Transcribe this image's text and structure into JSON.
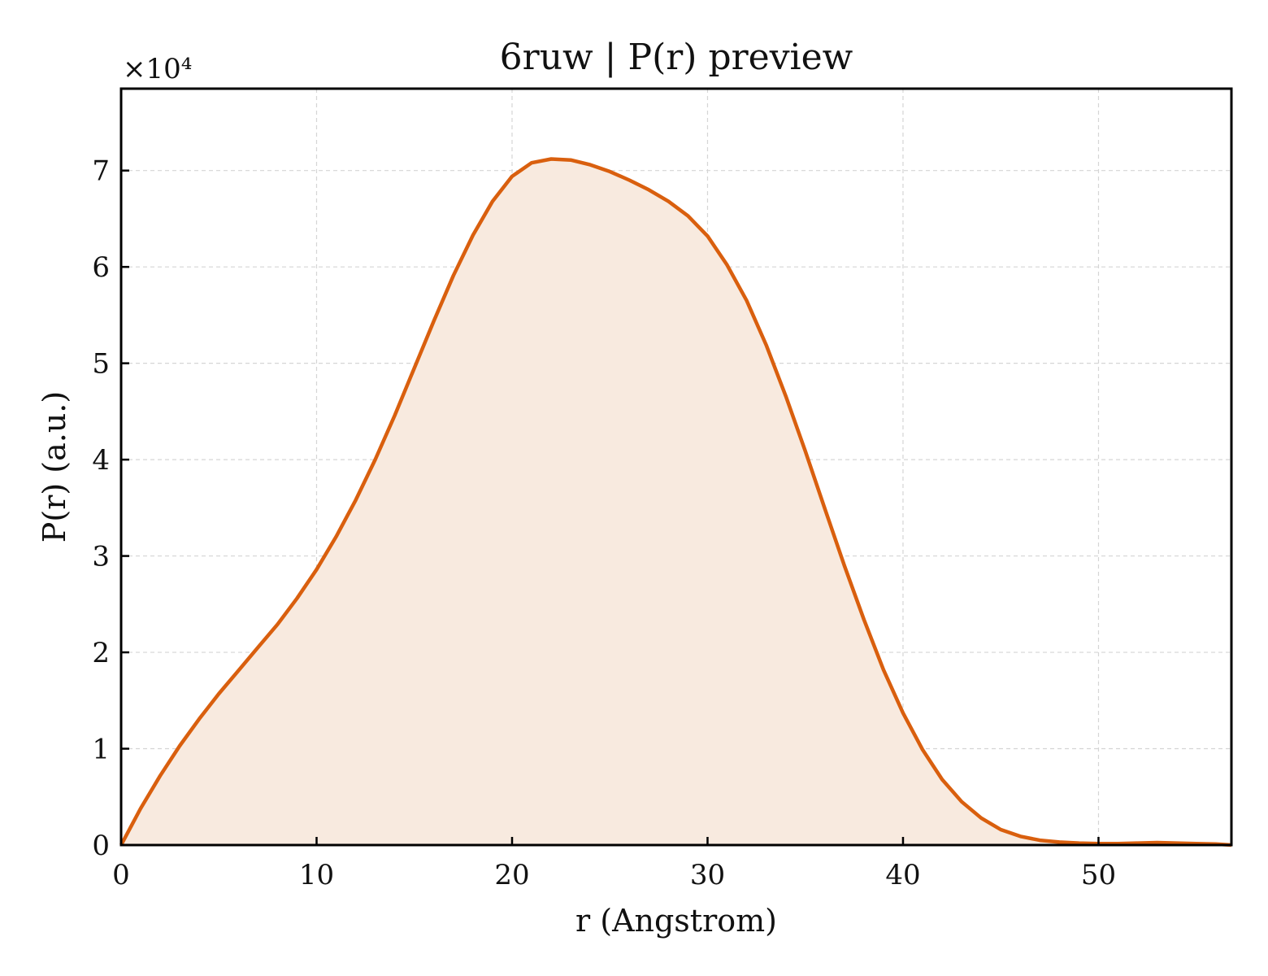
{
  "chart_data": {
    "type": "area",
    "title": "6ruw | P(r) preview",
    "xlabel": "r (Angstrom)",
    "ylabel": "P(r) (a.u.)",
    "y_multiplier_label": "×10⁴",
    "y_scale_factor": 10000,
    "xlim": [
      0,
      56.8
    ],
    "ylim": [
      0,
      78500
    ],
    "xticks": [
      0,
      10,
      20,
      30,
      40,
      50
    ],
    "xtick_labels": [
      "0",
      "10",
      "20",
      "30",
      "40",
      "50"
    ],
    "yticks": [
      0,
      10000,
      20000,
      30000,
      40000,
      50000,
      60000,
      70000
    ],
    "ytick_labels": [
      "0",
      "1",
      "2",
      "3",
      "4",
      "5",
      "6",
      "7"
    ],
    "grid": true,
    "line_color": "#D95F0E",
    "fill_color": "#F8EADF",
    "series": [
      {
        "x": [
          0,
          1,
          2,
          3,
          4,
          5,
          6,
          7,
          8,
          9,
          10,
          11,
          12,
          13,
          14,
          15,
          16,
          17,
          18,
          19,
          20,
          21,
          22,
          23,
          24,
          25,
          26,
          27,
          28,
          29,
          30,
          31,
          32,
          33,
          34,
          35,
          36,
          37,
          38,
          39,
          40,
          41,
          42,
          43,
          44,
          45,
          46,
          47,
          48,
          49,
          50,
          51,
          52,
          53,
          54,
          55,
          56,
          56.8
        ],
        "y": [
          0,
          3800,
          7200,
          10300,
          13100,
          15700,
          18100,
          20500,
          22900,
          25600,
          28600,
          32000,
          35800,
          40000,
          44600,
          49500,
          54400,
          59100,
          63300,
          66800,
          69400,
          70800,
          71200,
          71100,
          70600,
          69900,
          69000,
          68000,
          66800,
          65300,
          63200,
          60200,
          56500,
          51900,
          46600,
          40900,
          34900,
          29000,
          23400,
          18200,
          13700,
          9900,
          6800,
          4500,
          2800,
          1600,
          900,
          500,
          300,
          200,
          150,
          150,
          200,
          250,
          200,
          150,
          100,
          0
        ]
      }
    ]
  }
}
